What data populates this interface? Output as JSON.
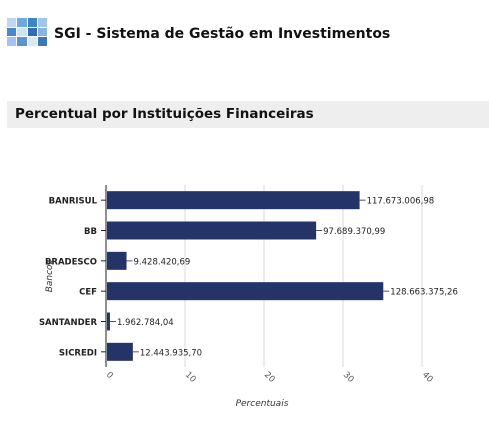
{
  "header": {
    "title": "SGI - Sistema de Gestão em Investimentos",
    "logo_colors": [
      "#bdd7ee",
      "#6fa8dc",
      "#3d85c6",
      "#9fc5e8",
      "#4a86c8",
      "#cfe2f3",
      "#2f6eb5",
      "#8ab4e0",
      "#a4c2f4",
      "#5b95cf",
      "#d9e8f7",
      "#3c78b8"
    ]
  },
  "section": {
    "title": "Percentual por Instituições Financeiras"
  },
  "chart_data": {
    "type": "bar",
    "orientation": "horizontal",
    "categories": [
      "BANRISUL",
      "BB",
      "BRADESCO",
      "CEF",
      "SANTANDER",
      "SICREDI"
    ],
    "values": [
      32.1,
      26.6,
      2.6,
      35.1,
      0.5,
      3.4
    ],
    "data_labels": [
      "117.673.006,98",
      "97.689.370,99",
      "9.428.420,69",
      "128.663.375,26",
      "1.962.784,04",
      "12.443.935,70"
    ],
    "xlabel": "Percentuais",
    "ylabel": "Bancos",
    "xlim": [
      0,
      40
    ],
    "xticks": [
      "0",
      "10",
      "20",
      "30",
      "40"
    ],
    "grid": "vertical",
    "bar_color": "#253468"
  }
}
